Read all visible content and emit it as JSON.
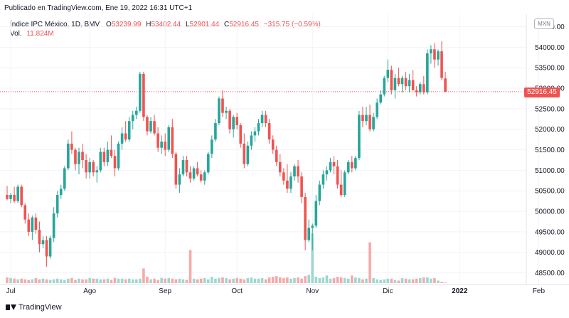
{
  "header": {
    "published": "Publicado en TradingView.com, Ene 19, 2022 16:31 UTC+1"
  },
  "legend": {
    "symbol": "Índice IPC México, 1D, BMV",
    "open_label": "O",
    "open": "53239.99",
    "high_label": "H",
    "high": "53402.44",
    "low_label": "L",
    "low": "52901.44",
    "close_label": "C",
    "close": "52916.45",
    "change": "−315.75 (−0.59%)",
    "volume_label": "Vol.",
    "volume": "11.824M"
  },
  "currency": "MXN",
  "last_price_label": "52916.45",
  "footer": {
    "brand": "TradingView"
  },
  "colors": {
    "up": "#26a69a",
    "down": "#ef5350",
    "up_volume": "#9fd7d0",
    "down_volume": "#f5aaa9",
    "grid": "#f0f3fa"
  },
  "chart_data": {
    "type": "candlestick",
    "y_ticks": [
      48500,
      49000,
      49500,
      50000,
      50500,
      51000,
      51500,
      52000,
      52500,
      53000,
      53500,
      54000,
      54500
    ],
    "y_tick_labels": [
      "48500.00",
      "49000.00",
      "49500.00",
      "50000.00",
      "50500.00",
      "51000.00",
      "51500.00",
      "52000.00",
      "52500.00",
      "53000.00",
      "53500.00",
      "54000.00",
      "54500.00"
    ],
    "ylim": [
      48250,
      54700
    ],
    "x_labels": [
      "Jul",
      "Ago",
      "Sep",
      "Oct",
      "Nov",
      "Dic",
      "2022",
      "Feb"
    ],
    "x_label_index": [
      1,
      23,
      44,
      64,
      85,
      106,
      126,
      148
    ],
    "last_price": 52916.45,
    "bars": [
      [
        50400,
        50620,
        50270,
        50300
      ],
      [
        50300,
        50450,
        50200,
        50400
      ],
      [
        50400,
        50600,
        50200,
        50250
      ],
      [
        50250,
        50650,
        50200,
        50600
      ],
      [
        50600,
        50650,
        50100,
        50150
      ],
      [
        50150,
        50200,
        49700,
        49800
      ],
      [
        49800,
        49950,
        49400,
        49500
      ],
      [
        49500,
        49900,
        49300,
        49850
      ],
      [
        49850,
        49950,
        49450,
        49550
      ],
      [
        49550,
        49750,
        49000,
        49200
      ],
      [
        49200,
        49400,
        49100,
        49300
      ],
      [
        49300,
        49400,
        48650,
        48900
      ],
      [
        48900,
        49400,
        48850,
        49350
      ],
      [
        49350,
        50100,
        49250,
        49950
      ],
      [
        49950,
        50500,
        49850,
        50400
      ],
      [
        50400,
        50650,
        50300,
        50550
      ],
      [
        50550,
        51100,
        50500,
        51050
      ],
      [
        51050,
        51750,
        51000,
        51650
      ],
      [
        51650,
        51950,
        51400,
        51500
      ],
      [
        51500,
        51550,
        51000,
        51150
      ],
      [
        51150,
        51550,
        50900,
        51450
      ],
      [
        51450,
        51650,
        51050,
        51250
      ],
      [
        51250,
        51400,
        50800,
        50950
      ],
      [
        50950,
        51300,
        50800,
        51200
      ],
      [
        51200,
        51250,
        50850,
        50950
      ],
      [
        50950,
        51100,
        50700,
        51000
      ],
      [
        51000,
        51550,
        50950,
        51450
      ],
      [
        51450,
        51550,
        51100,
        51200
      ],
      [
        51200,
        51700,
        51100,
        51500
      ],
      [
        51500,
        51850,
        51300,
        51350
      ],
      [
        51350,
        51500,
        50850,
        51050
      ],
      [
        51050,
        51700,
        51000,
        51650
      ],
      [
        51650,
        52050,
        51500,
        51900
      ],
      [
        51900,
        52200,
        51700,
        51750
      ],
      [
        51750,
        52300,
        51700,
        52200
      ],
      [
        52200,
        52450,
        52000,
        52350
      ],
      [
        52350,
        52550,
        52250,
        52450
      ],
      [
        52450,
        53400,
        52400,
        53350
      ],
      [
        53350,
        53400,
        52200,
        52300
      ],
      [
        52300,
        52350,
        51850,
        51950
      ],
      [
        51950,
        52300,
        51900,
        52200
      ],
      [
        52200,
        52350,
        51850,
        51900
      ],
      [
        51900,
        52050,
        51450,
        51550
      ],
      [
        51550,
        51850,
        51400,
        51700
      ],
      [
        51700,
        51900,
        51350,
        51500
      ],
      [
        51500,
        52100,
        51450,
        52050
      ],
      [
        52050,
        52250,
        51300,
        51400
      ],
      [
        51400,
        51450,
        50550,
        50650
      ],
      [
        50650,
        51050,
        50450,
        50900
      ],
      [
        50900,
        51350,
        50850,
        51250
      ],
      [
        51250,
        51350,
        50850,
        50950
      ],
      [
        50950,
        51100,
        50700,
        50800
      ],
      [
        50800,
        51100,
        50750,
        51050
      ],
      [
        51050,
        51200,
        50850,
        50900
      ],
      [
        50900,
        51000,
        50700,
        50750
      ],
      [
        50750,
        51000,
        50650,
        50950
      ],
      [
        50950,
        51450,
        50900,
        51400
      ],
      [
        51400,
        51850,
        51300,
        51750
      ],
      [
        51750,
        52250,
        51700,
        52150
      ],
      [
        52150,
        52800,
        52100,
        52750
      ],
      [
        52750,
        52950,
        52300,
        52400
      ],
      [
        52400,
        52550,
        52250,
        52450
      ],
      [
        52450,
        52500,
        51900,
        52000
      ],
      [
        52000,
        52350,
        51800,
        52300
      ],
      [
        52300,
        52400,
        52000,
        52100
      ],
      [
        52100,
        52150,
        51550,
        51650
      ],
      [
        51650,
        51900,
        51050,
        51150
      ],
      [
        51150,
        51700,
        51100,
        51600
      ],
      [
        51600,
        51950,
        51500,
        51850
      ],
      [
        51850,
        52050,
        51700,
        51950
      ],
      [
        51950,
        52250,
        51850,
        52150
      ],
      [
        52150,
        52450,
        52050,
        52350
      ],
      [
        52350,
        52450,
        52050,
        52150
      ],
      [
        52150,
        52250,
        51650,
        51750
      ],
      [
        51750,
        51850,
        51400,
        51500
      ],
      [
        51500,
        51600,
        51100,
        51200
      ],
      [
        51200,
        51400,
        50850,
        50950
      ],
      [
        50950,
        51050,
        50650,
        50750
      ],
      [
        50750,
        51150,
        50450,
        50550
      ],
      [
        50550,
        50950,
        50450,
        50850
      ],
      [
        50850,
        51150,
        50750,
        51100
      ],
      [
        51100,
        51250,
        50700,
        50850
      ],
      [
        50850,
        50950,
        50200,
        50350
      ],
      [
        50350,
        50450,
        49050,
        49300
      ],
      [
        49300,
        49800,
        49250,
        49600
      ],
      [
        49600,
        49700,
        49050,
        49650
      ],
      [
        49650,
        50400,
        49600,
        50250
      ],
      [
        50250,
        50750,
        50150,
        50650
      ],
      [
        50650,
        51000,
        50550,
        50900
      ],
      [
        50900,
        51100,
        50750,
        51000
      ],
      [
        51000,
        51300,
        50950,
        51200
      ],
      [
        51200,
        51350,
        50900,
        51100
      ],
      [
        51100,
        51250,
        50550,
        50650
      ],
      [
        50650,
        51000,
        50350,
        50400
      ],
      [
        50400,
        51000,
        50350,
        50950
      ],
      [
        50950,
        51250,
        50900,
        51200
      ],
      [
        51200,
        51350,
        50950,
        51050
      ],
      [
        51050,
        51350,
        51000,
        51300
      ],
      [
        51300,
        52450,
        51250,
        52350
      ],
      [
        52350,
        52550,
        52050,
        52200
      ],
      [
        52200,
        52550,
        52100,
        52350
      ],
      [
        52350,
        52600,
        51950,
        52000
      ],
      [
        52000,
        52400,
        51950,
        52300
      ],
      [
        52300,
        52750,
        52250,
        52650
      ],
      [
        52650,
        52950,
        52600,
        52850
      ],
      [
        52850,
        53300,
        52800,
        53250
      ],
      [
        53250,
        53700,
        53150,
        53450
      ],
      [
        53450,
        53550,
        52850,
        52950
      ],
      [
        52950,
        53350,
        52750,
        53250
      ],
      [
        53250,
        53500,
        53050,
        53100
      ],
      [
        53100,
        53300,
        52900,
        53250
      ],
      [
        53250,
        53400,
        52950,
        53050
      ],
      [
        53050,
        53350,
        52900,
        53200
      ],
      [
        53200,
        53450,
        52950,
        52950
      ],
      [
        52950,
        53050,
        52800,
        52900
      ],
      [
        52900,
        53150,
        52850,
        53100
      ],
      [
        53100,
        53300,
        52850,
        52900
      ],
      [
        52900,
        53950,
        52850,
        53850
      ],
      [
        53850,
        54050,
        53600,
        53950
      ],
      [
        53950,
        54100,
        53500,
        53700
      ],
      [
        53700,
        53950,
        53550,
        53900
      ],
      [
        53900,
        54150,
        53200,
        53250
      ],
      [
        53240,
        53400,
        52900,
        52916
      ]
    ],
    "volumes": [
      0.9,
      0.8,
      0.7,
      0.6,
      0.7,
      0.6,
      0.5,
      0.6,
      0.8,
      0.6,
      0.7,
      0.6,
      0.5,
      0.6,
      0.7,
      0.6,
      0.5,
      0.7,
      0.8,
      0.5,
      0.7,
      0.6,
      0.6,
      0.8,
      0.7,
      0.7,
      0.6,
      0.6,
      0.7,
      0.5,
      0.8,
      0.7,
      0.7,
      0.6,
      0.7,
      0.6,
      0.6,
      0.7,
      2.3,
      1.0,
      0.6,
      0.7,
      0.5,
      0.8,
      0.7,
      0.8,
      0.7,
      0.6,
      0.7,
      0.6,
      0.5,
      5.2,
      0.7,
      0.6,
      0.7,
      0.8,
      0.6,
      1.0,
      0.7,
      0.8,
      0.9,
      0.8,
      0.6,
      0.7,
      0.8,
      0.7,
      0.6,
      0.8,
      0.9,
      0.7,
      0.7,
      0.8,
      0.6,
      0.9,
      1.0,
      1.1,
      0.9,
      0.8,
      0.9,
      0.7,
      0.8,
      0.9,
      0.7,
      1.1,
      1.3,
      7.8,
      1.0,
      0.8,
      0.9,
      1.2,
      0.7,
      0.8,
      1.0,
      0.9,
      0.8,
      0.7,
      1.2,
      0.9,
      0.8,
      0.6,
      0.7,
      6.4,
      0.8,
      0.6,
      0.5,
      0.6,
      0.7,
      0.7,
      0.5,
      0.4,
      0.8,
      0.7,
      0.6,
      0.6,
      0.7,
      0.8,
      0.9,
      0.9,
      0.7,
      0.8,
      0.4,
      0.2,
      0.1
    ]
  }
}
